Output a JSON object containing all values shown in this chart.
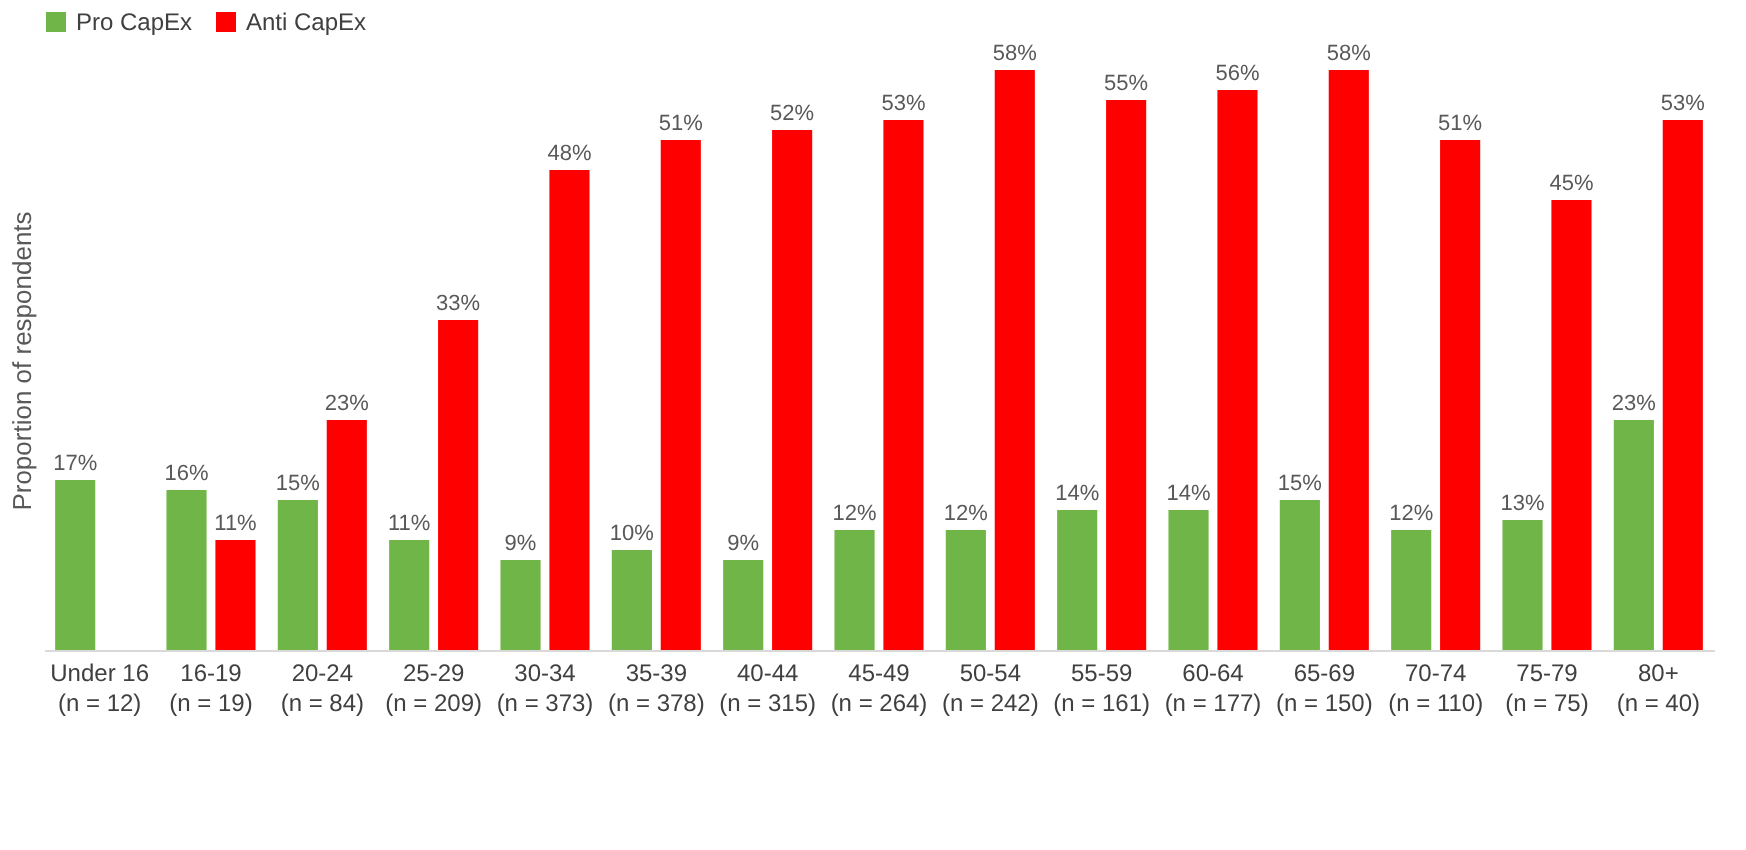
{
  "chart_data": {
    "type": "bar",
    "ylabel": "Proportion of respondents",
    "legend": "top",
    "categories": [
      "Under 16 (n = 12)",
      "16-19 (n = 19)",
      "20-24 (n = 84)",
      "25-29 (n = 209)",
      "30-34 (n = 373)",
      "35-39 (n = 378)",
      "40-44 (n = 315)",
      "45-49 (n = 264)",
      "50-54 (n = 242)",
      "55-59 (n = 161)",
      "60-64 (n = 177)",
      "65-69 (n = 150)",
      "70-74 (n = 110)",
      "75-79 (n = 75)",
      "80+ (n = 40)"
    ],
    "series": [
      {
        "name": "Pro CapEx",
        "color": "#70b548",
        "values": [
          17,
          16,
          15,
          11,
          9,
          10,
          9,
          12,
          12,
          14,
          14,
          15,
          12,
          13,
          23
        ],
        "value_labels": [
          "17%",
          "16%",
          "15%",
          "11%",
          "9%",
          "10%",
          "9%",
          "12%",
          "12%",
          "14%",
          "14%",
          "15%",
          "12%",
          "13%",
          "23%"
        ]
      },
      {
        "name": "Anti CapEx",
        "color": "#ff0000",
        "values": [
          null,
          11,
          23,
          33,
          48,
          51,
          52,
          53,
          58,
          55,
          56,
          58,
          51,
          45,
          53
        ],
        "value_labels": [
          null,
          "11%",
          "23%",
          "33%",
          "48%",
          "51%",
          "52%",
          "53%",
          "58%",
          "55%",
          "56%",
          "58%",
          "51%",
          "45%",
          "53%"
        ]
      }
    ],
    "grid": false
  }
}
